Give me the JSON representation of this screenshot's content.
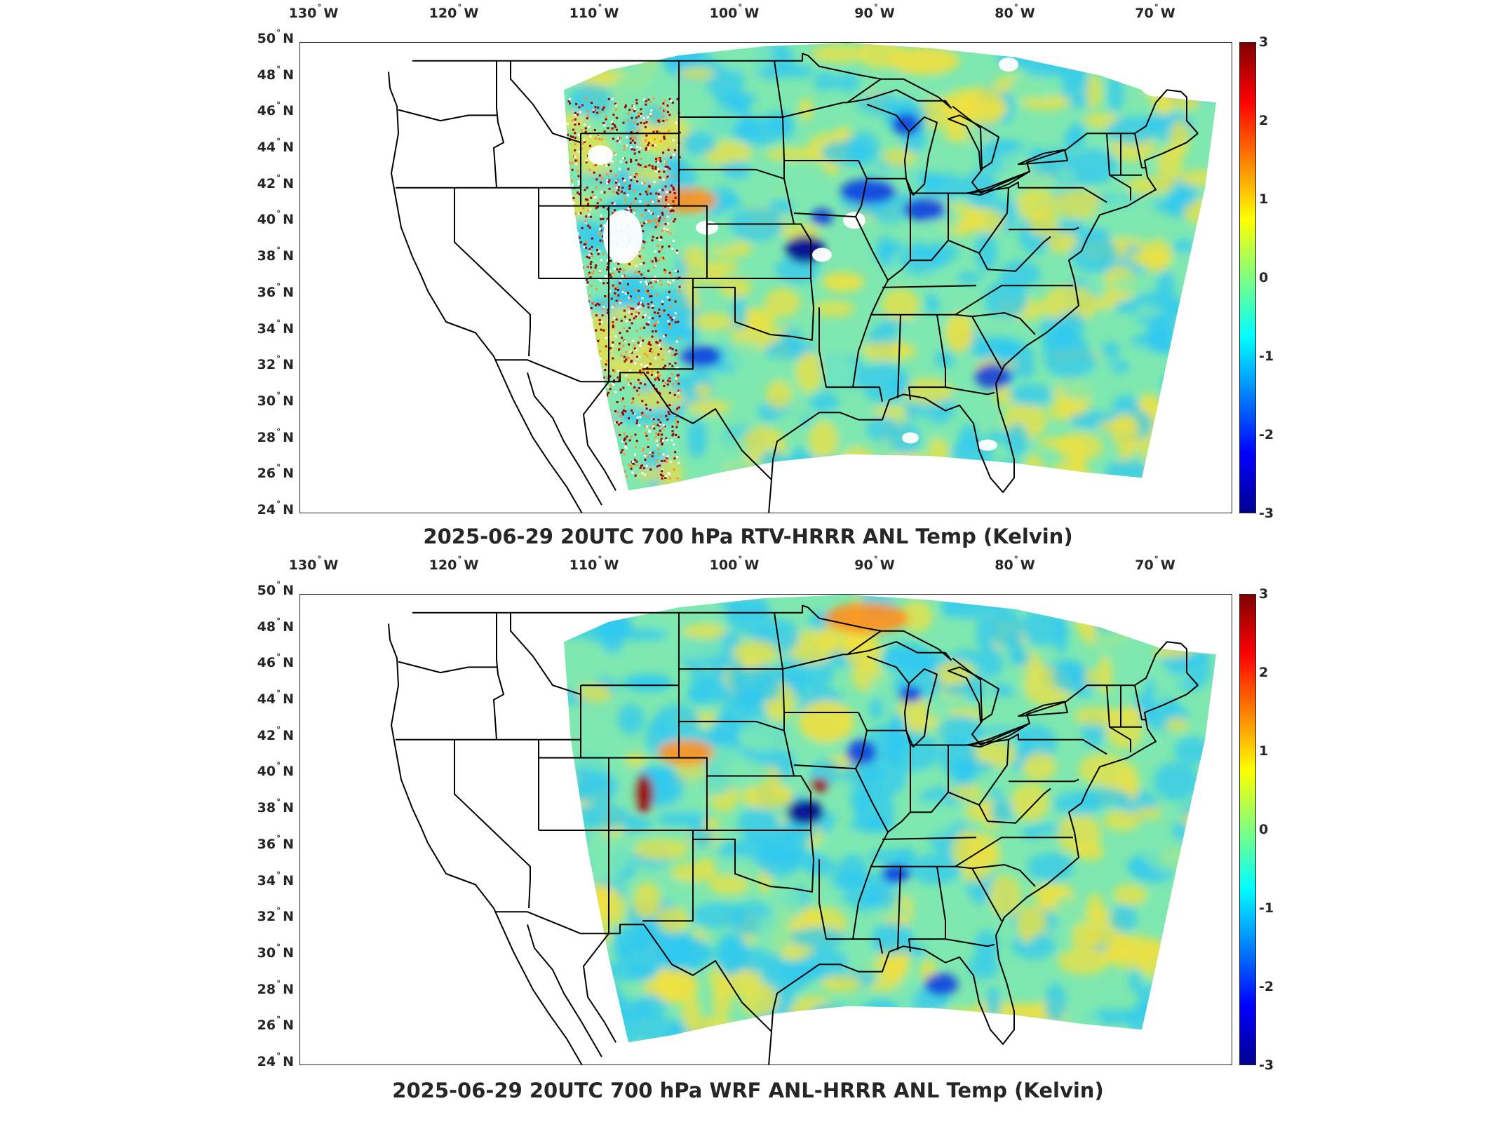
{
  "panels": [
    {
      "id": "top",
      "title": "2025-06-29 20UTC 700 hPa RTV-HRRR ANL Temp (Kelvin)",
      "lon_labels": [
        {
          "deg": "130",
          "dir": "W"
        },
        {
          "deg": "120",
          "dir": "W"
        },
        {
          "deg": "110",
          "dir": "W"
        },
        {
          "deg": "100",
          "dir": "W"
        },
        {
          "deg": "90",
          "dir": "W"
        },
        {
          "deg": "80",
          "dir": "W"
        },
        {
          "deg": "70",
          "dir": "W"
        }
      ],
      "lat_labels": [
        {
          "deg": "50",
          "dir": "N"
        },
        {
          "deg": "48",
          "dir": "N"
        },
        {
          "deg": "46",
          "dir": "N"
        },
        {
          "deg": "44",
          "dir": "N"
        },
        {
          "deg": "42",
          "dir": "N"
        },
        {
          "deg": "40",
          "dir": "N"
        },
        {
          "deg": "38",
          "dir": "N"
        },
        {
          "deg": "36",
          "dir": "N"
        },
        {
          "deg": "34",
          "dir": "N"
        },
        {
          "deg": "32",
          "dir": "N"
        },
        {
          "deg": "30",
          "dir": "N"
        },
        {
          "deg": "28",
          "dir": "N"
        },
        {
          "deg": "26",
          "dir": "N"
        },
        {
          "deg": "24",
          "dir": "N"
        }
      ],
      "colorbar_ticks": [
        "3",
        "2",
        "1",
        "0",
        "-1",
        "-2",
        "-3"
      ]
    },
    {
      "id": "bottom",
      "title": "2025-06-29 20UTC 700 hPa WRF ANL-HRRR ANL Temp (Kelvin)",
      "lon_labels": [
        {
          "deg": "130",
          "dir": "W"
        },
        {
          "deg": "120",
          "dir": "W"
        },
        {
          "deg": "110",
          "dir": "W"
        },
        {
          "deg": "100",
          "dir": "W"
        },
        {
          "deg": "90",
          "dir": "W"
        },
        {
          "deg": "80",
          "dir": "W"
        },
        {
          "deg": "70",
          "dir": "W"
        }
      ],
      "lat_labels": [
        {
          "deg": "50",
          "dir": "N"
        },
        {
          "deg": "48",
          "dir": "N"
        },
        {
          "deg": "46",
          "dir": "N"
        },
        {
          "deg": "44",
          "dir": "N"
        },
        {
          "deg": "42",
          "dir": "N"
        },
        {
          "deg": "40",
          "dir": "N"
        },
        {
          "deg": "38",
          "dir": "N"
        },
        {
          "deg": "36",
          "dir": "N"
        },
        {
          "deg": "34",
          "dir": "N"
        },
        {
          "deg": "32",
          "dir": "N"
        },
        {
          "deg": "30",
          "dir": "N"
        },
        {
          "deg": "28",
          "dir": "N"
        },
        {
          "deg": "26",
          "dir": "N"
        },
        {
          "deg": "24",
          "dir": "N"
        }
      ],
      "colorbar_ticks": [
        "3",
        "2",
        "1",
        "0",
        "-1",
        "-2",
        "-3"
      ]
    }
  ],
  "colorbar": {
    "range": [
      -3,
      3
    ],
    "colormap": "jet",
    "colors": [
      "#7f0000",
      "#ff0000",
      "#ff8000",
      "#ffff00",
      "#80ff80",
      "#00ffff",
      "#0080ff",
      "#0000ff",
      "#00008f"
    ]
  },
  "field_colors": {
    "background": "#7fe8b0",
    "cool": "#30c8f0",
    "warm": "#f0e040",
    "hot": "#ff9020",
    "cold": "#1040e0",
    "very_cold": "#000090",
    "very_hot": "#a00000",
    "missing": "#ffffff"
  },
  "map": {
    "lon_range": [
      -131,
      -64.5
    ],
    "lat_range": [
      24,
      50
    ],
    "land_outline_color": "#000000"
  }
}
